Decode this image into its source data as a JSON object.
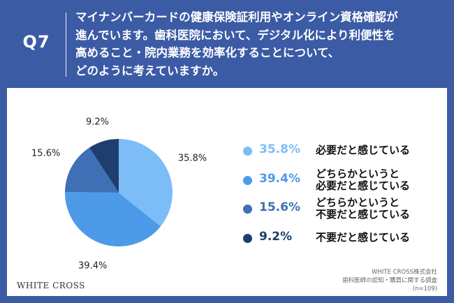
{
  "question": {
    "number": "Q7",
    "lines": [
      "マイナンバーカードの健康保険証利用やオンライン資格確認が",
      "進んでいます。歯科医院において、デジタル化により利便性を",
      "高めること・院内業務を効率化することについて、",
      "どのように考えていますか。"
    ]
  },
  "colors": {
    "header_bg": "#3b5ba5",
    "panel_bg": "#ffffff",
    "slice_1": "#7dbdf7",
    "slice_2": "#4d9ae8",
    "slice_3": "#3f6fb4",
    "slice_4": "#1e3f6e"
  },
  "chart_data": {
    "type": "pie",
    "title": "",
    "start_angle_deg": 0,
    "direction": "clockwise",
    "slices": [
      {
        "label": "必要だと感じている",
        "value": 35.8,
        "pct_label": "35.8%",
        "color": "#7dbdf7"
      },
      {
        "label": "どちらかというと必要だと感じている",
        "value": 39.4,
        "pct_label": "39.4%",
        "color": "#4d9ae8"
      },
      {
        "label": "どちらかというと不要だと感じている",
        "value": 15.6,
        "pct_label": "15.6%",
        "color": "#3f6fb4"
      },
      {
        "label": "不要だと感じている",
        "value": 9.2,
        "pct_label": "9.2%",
        "color": "#1e3f6e"
      }
    ]
  },
  "legend": [
    {
      "pct": "35.8%",
      "lines": [
        "必要だと感じている"
      ]
    },
    {
      "pct": "39.4%",
      "lines": [
        "どちらかというと",
        "必要だと感じている"
      ]
    },
    {
      "pct": "15.6%",
      "lines": [
        "どちらかというと",
        "不要だと感じている"
      ]
    },
    {
      "pct": "9.2%",
      "lines": [
        "不要だと感じている"
      ]
    }
  ],
  "footer": {
    "brand": "WHITE CROSS",
    "source_lines": [
      "WHITE CROSS株式会社",
      "歯科医師の認知・購買に関する調査",
      "(n=109)"
    ]
  }
}
